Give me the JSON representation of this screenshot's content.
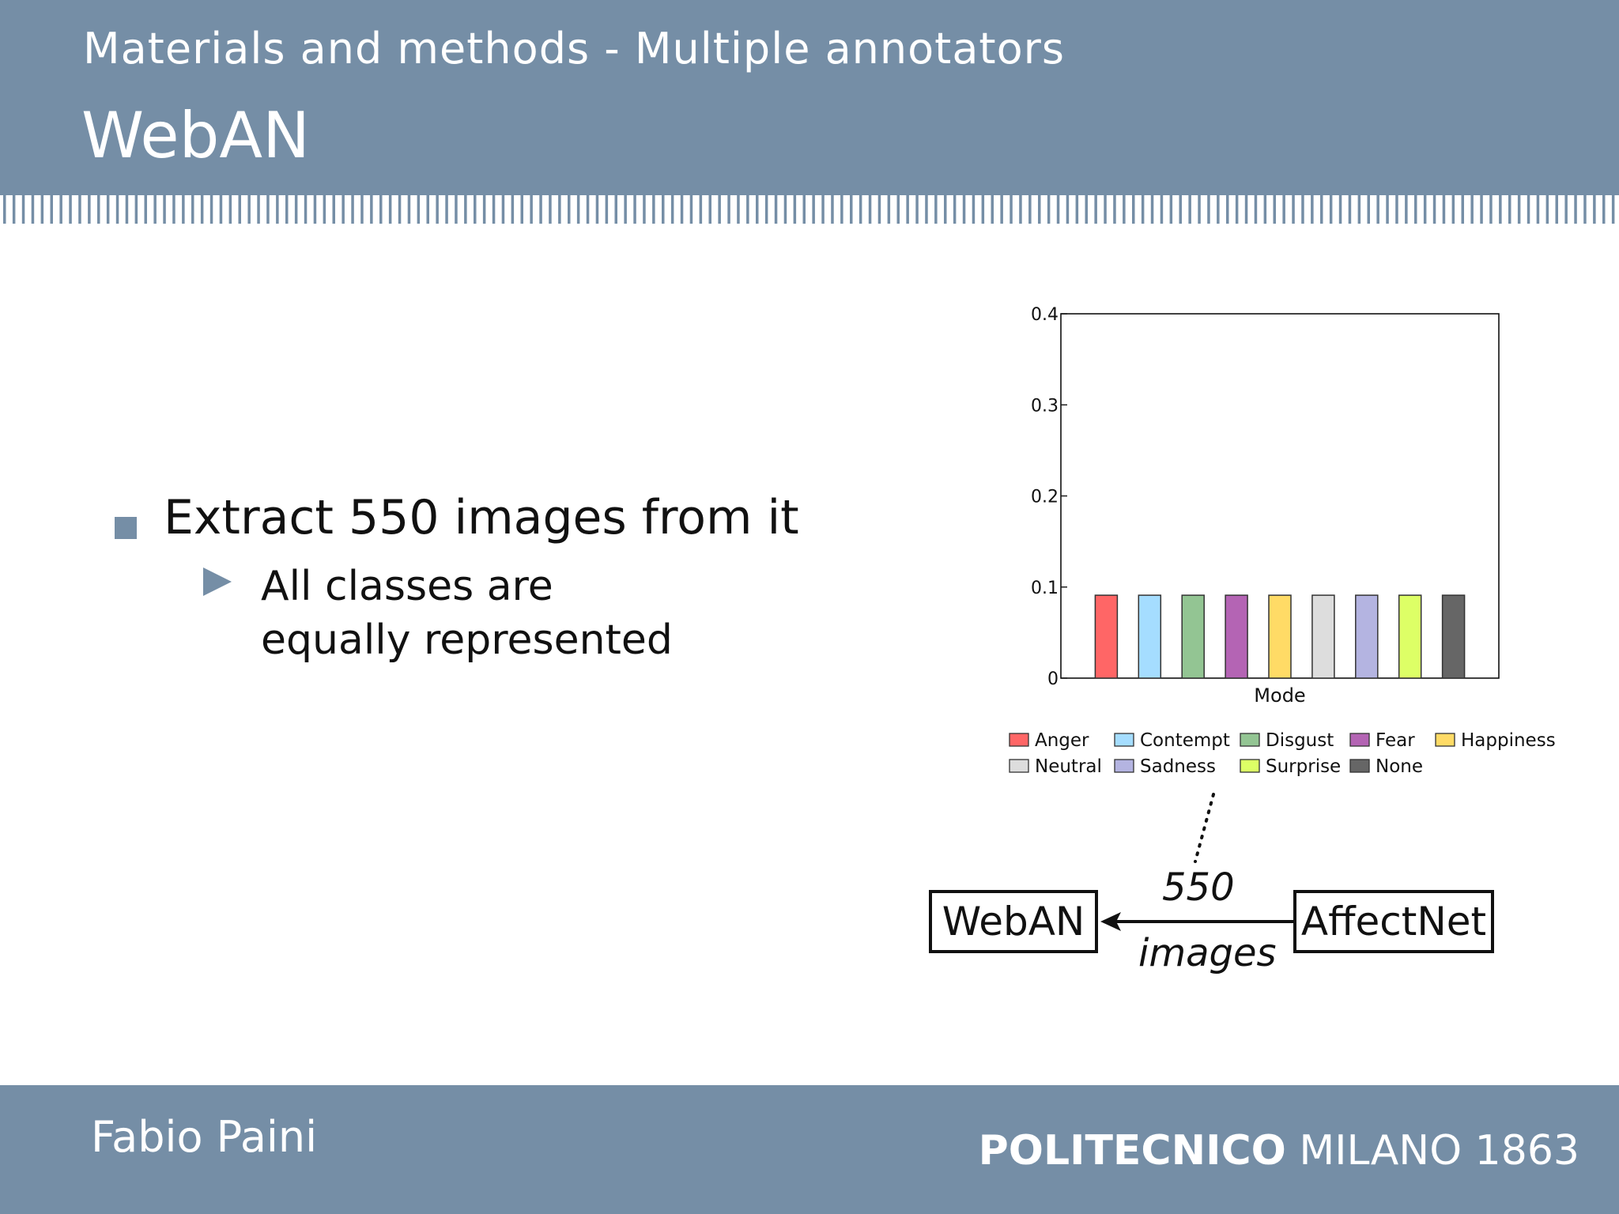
{
  "header": {
    "section": "Materials and methods - Multiple annotators",
    "title": "WebAN"
  },
  "bullets": {
    "main": "Extract 550 images from it",
    "sub": "All classes are equally represented"
  },
  "chart_data": {
    "type": "bar",
    "xlabel": "Mode",
    "ylabel": "",
    "title": "",
    "ylim": [
      0,
      0.4
    ],
    "yticks": [
      "0",
      "0.1",
      "0.2",
      "0.3",
      "0.4"
    ],
    "grid": false,
    "legend_position": "bottom",
    "series": [
      {
        "name": "Anger",
        "value": 0.091,
        "color": "#ff6666"
      },
      {
        "name": "Contempt",
        "value": 0.091,
        "color": "#a5ddff"
      },
      {
        "name": "Disgust",
        "value": 0.091,
        "color": "#93c593"
      },
      {
        "name": "Fear",
        "value": 0.091,
        "color": "#b464b4"
      },
      {
        "name": "Happiness",
        "value": 0.091,
        "color": "#ffdb66"
      },
      {
        "name": "Neutral",
        "value": 0.091,
        "color": "#dddddd"
      },
      {
        "name": "Sadness",
        "value": 0.091,
        "color": "#b4b4e1"
      },
      {
        "name": "Surprise",
        "value": 0.091,
        "color": "#ddff66"
      },
      {
        "name": "None",
        "value": 0.091,
        "color": "#666666"
      }
    ]
  },
  "diagram": {
    "label_count": "550",
    "label_unit": "images",
    "target": "WebAN",
    "source": "AffectNet"
  },
  "footer": {
    "author": "Fabio Paini",
    "institution_bold": "POLITECNICO",
    "institution_rest": "MILANO 1863"
  }
}
